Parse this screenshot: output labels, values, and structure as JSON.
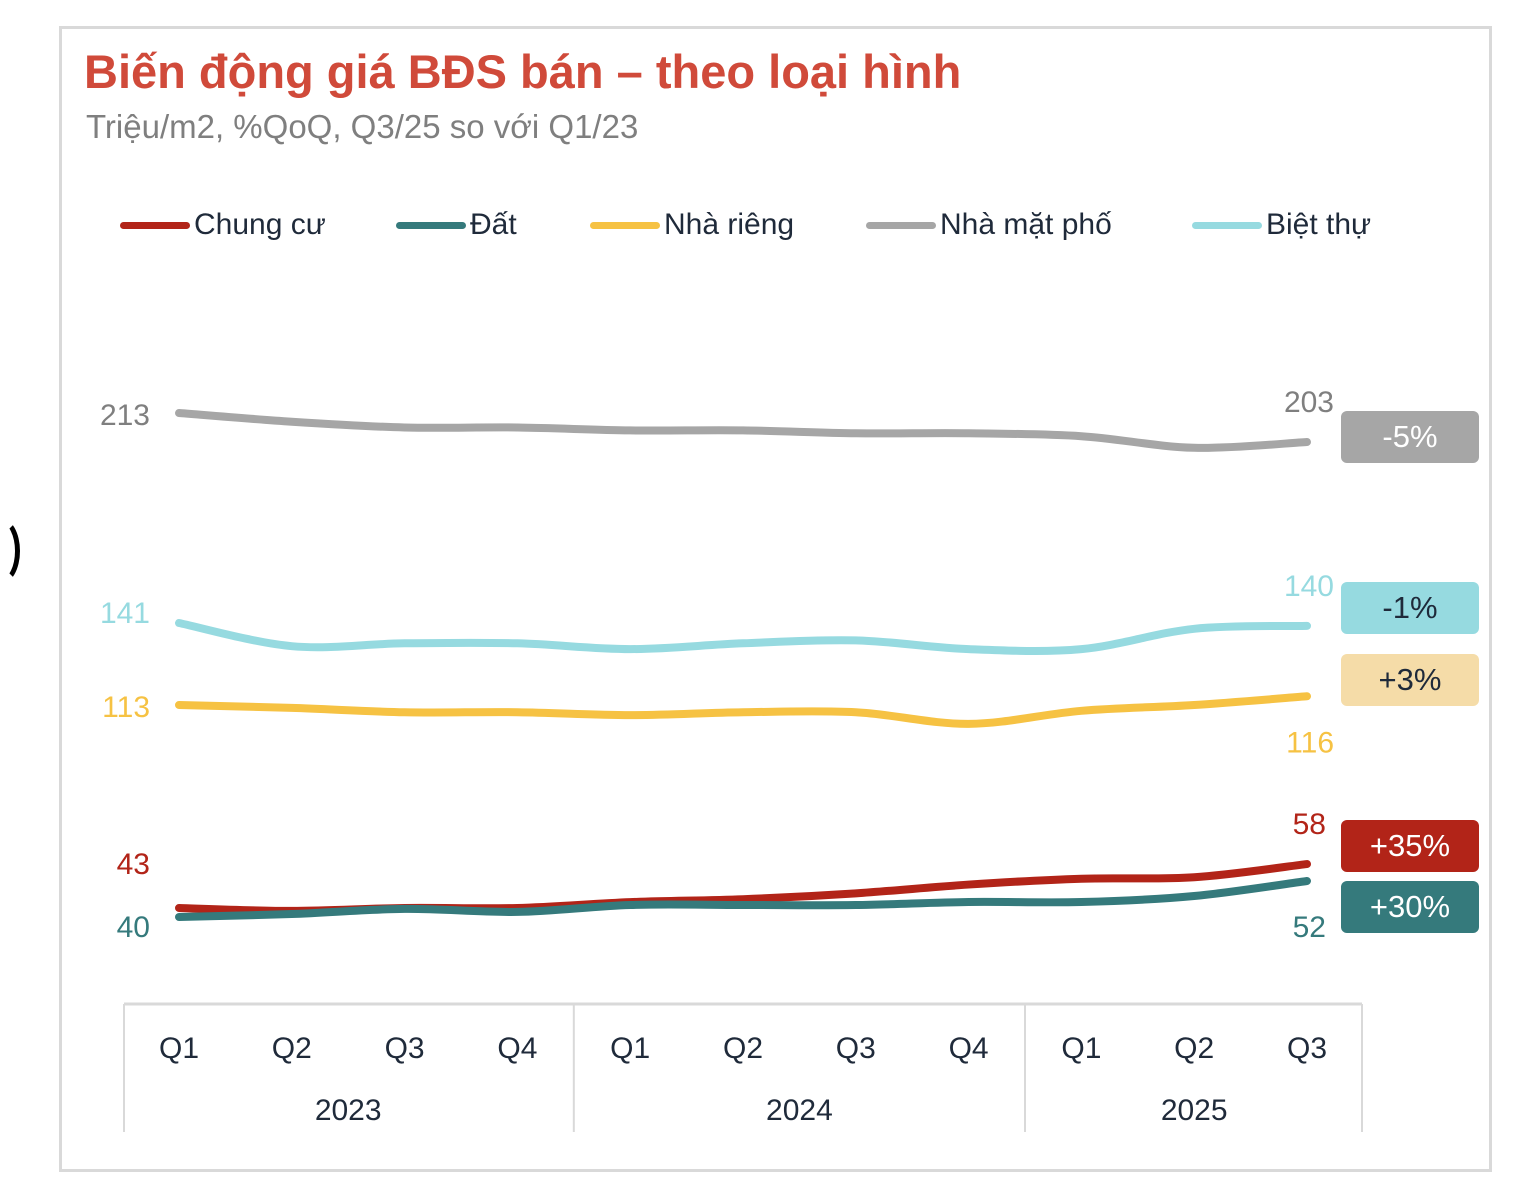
{
  "header": {
    "title": "Biến động giá BĐS bán – theo loại hình",
    "subtitle": "Triệu/m2, %QoQ, Q3/25 so với Q1/23"
  },
  "legend": [
    {
      "label": "Chung cư",
      "color": "#b22418"
    },
    {
      "label": "Đất",
      "color": "#357a7c"
    },
    {
      "label": "Nhà riêng",
      "color": "#f6c243"
    },
    {
      "label": "Nhà mặt phố",
      "color": "#a6a6a6"
    },
    {
      "label": "Biệt thự",
      "color": "#96dae0"
    }
  ],
  "badges": [
    {
      "series": "Nhà mặt phố",
      "text": "-5%",
      "bg": "#a6a6a6",
      "fg": "#ffffff"
    },
    {
      "series": "Biệt thự",
      "text": "-1%",
      "bg": "#96dae0",
      "fg": "#1f2a3a"
    },
    {
      "series": "Nhà riêng",
      "text": "+3%",
      "bg": "#f5dca8",
      "fg": "#1f2a3a"
    },
    {
      "series": "Chung cư",
      "text": "+35%",
      "bg": "#b22418",
      "fg": "#ffffff"
    },
    {
      "series": "Đất",
      "text": "+30%",
      "bg": "#357a7c",
      "fg": "#ffffff"
    }
  ],
  "chart_data": {
    "type": "line",
    "title": "Biến động giá BĐS bán – theo loại hình",
    "subtitle": "Triệu/m2, %QoQ, Q3/25 so với Q1/23",
    "xlabel": "",
    "ylabel": "Triệu/m2",
    "grid": false,
    "legend_position": "top",
    "categories": [
      "Q1",
      "Q2",
      "Q3",
      "Q4",
      "Q1",
      "Q2",
      "Q3",
      "Q4",
      "Q1",
      "Q2",
      "Q3"
    ],
    "year_groups": [
      {
        "label": "2023",
        "count": 4
      },
      {
        "label": "2024",
        "count": 4
      },
      {
        "label": "2025",
        "count": 3
      }
    ],
    "series": [
      {
        "name": "Nhà mặt phố",
        "color": "#a6a6a6",
        "values": [
          213,
          210,
          208,
          208,
          207,
          207,
          206,
          206,
          205,
          201,
          203
        ],
        "start_label": "213",
        "end_label": "203",
        "change": "-5%"
      },
      {
        "name": "Biệt thự",
        "color": "#96dae0",
        "values": [
          141,
          133,
          134,
          134,
          132,
          134,
          135,
          132,
          132,
          139,
          140
        ],
        "start_label": "141",
        "end_label": "140",
        "change": "-1%"
      },
      {
        "name": "Nhà riêng",
        "color": "#f6c243",
        "values": [
          113,
          112,
          110.5,
          110.5,
          109.5,
          110.5,
          110.5,
          106.5,
          111,
          113,
          116
        ],
        "start_label": "113",
        "end_label": "116",
        "change": "+3%"
      },
      {
        "name": "Chung cư",
        "color": "#b22418",
        "values": [
          43,
          42,
          43,
          43,
          45,
          46,
          48,
          51,
          53,
          53.5,
          58
        ],
        "start_label": "43",
        "end_label": "58",
        "change": "+35%"
      },
      {
        "name": "Đất",
        "color": "#357a7c",
        "values": [
          40,
          41,
          42.7,
          41.7,
          44,
          44,
          44,
          45,
          45,
          47,
          52
        ],
        "start_label": "40",
        "end_label": "52",
        "change": "+30%"
      }
    ]
  }
}
